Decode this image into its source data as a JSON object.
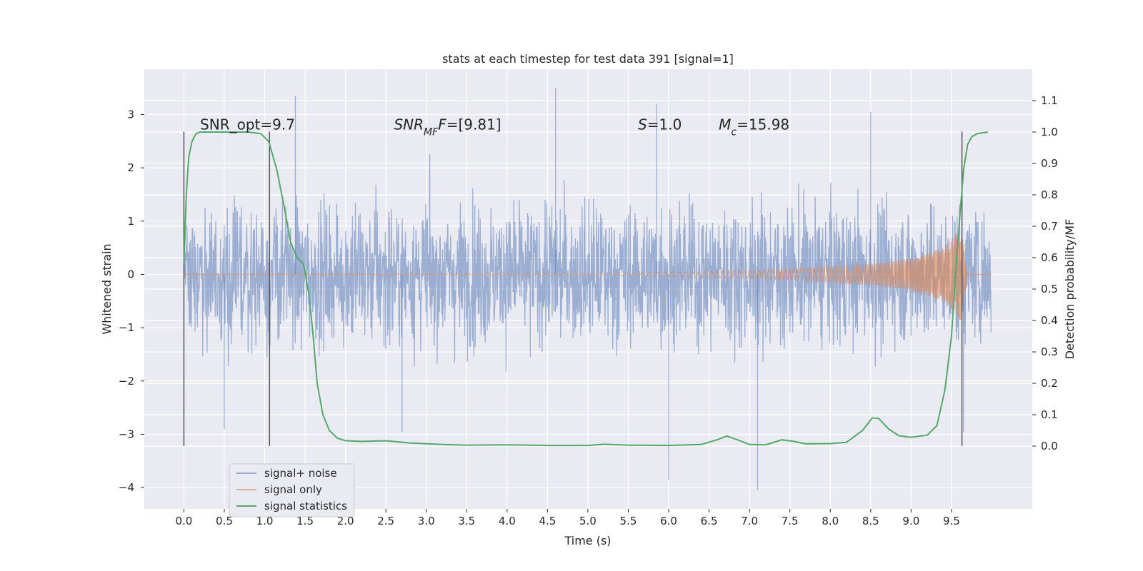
{
  "chart_data": {
    "type": "line",
    "title": "stats at each timestep for test data 391 [signal=1]",
    "xlabel": "Time (s)",
    "ylabel": "Whitened strain",
    "y2label": "Detection probability/MF",
    "xlim": [
      -0.49,
      10.5
    ],
    "ylim": [
      -4.4,
      3.85
    ],
    "y2lim": [
      -0.2,
      1.2
    ],
    "xticks": [
      0.0,
      0.5,
      1.0,
      1.5,
      2.0,
      2.5,
      3.0,
      3.5,
      4.0,
      4.5,
      5.0,
      5.5,
      6.0,
      6.5,
      7.0,
      7.5,
      8.0,
      8.5,
      9.0,
      9.5
    ],
    "xtick_labels": [
      "0.0",
      "0.5",
      "1.0",
      "1.5",
      "2.0",
      "2.5",
      "3.0",
      "3.5",
      "4.0",
      "4.5",
      "5.0",
      "5.5",
      "6.0",
      "6.5",
      "7.0",
      "7.5",
      "8.0",
      "8.5",
      "9.0",
      "9.5"
    ],
    "yticks": [
      3,
      2,
      1,
      0,
      -1,
      -2,
      -3,
      -4
    ],
    "ytick_labels": [
      "3",
      "2",
      "1",
      "0",
      "−1",
      "−2",
      "−3",
      "−4"
    ],
    "y2ticks": [
      1.1,
      1.0,
      0.9,
      0.8,
      0.7,
      0.6,
      0.5,
      0.4,
      0.3,
      0.2,
      0.1,
      0.0
    ],
    "y2tick_labels": [
      "1.1",
      "1.0",
      "0.9",
      "0.8",
      "0.7",
      "0.6",
      "0.5",
      "0.4",
      "0.3",
      "0.2",
      "0.1",
      "0.0"
    ],
    "grid": true,
    "legend_position": "lower-left",
    "series": [
      {
        "name": "signal+ noise",
        "color": "#4c72b0",
        "opacity": 0.5,
        "axis": "left",
        "x_range": [
          0.0,
          9.99
        ],
        "approx_envelope": [
          -1.5,
          1.5
        ],
        "approx_extremes": [
          {
            "x": 1.38,
            "y": 3.35
          },
          {
            "x": 4.6,
            "y": 3.5
          },
          {
            "x": 5.85,
            "y": 3.2
          },
          {
            "x": 6.0,
            "y": -3.85
          },
          {
            "x": 7.1,
            "y": -4.05
          },
          {
            "x": 0.5,
            "y": -2.9
          },
          {
            "x": 2.7,
            "y": -2.95
          },
          {
            "x": 8.5,
            "y": 3.05
          },
          {
            "x": 9.65,
            "y": -2.95
          }
        ]
      },
      {
        "name": "signal only",
        "color": "#dd8452",
        "axis": "left",
        "note": "chirp",
        "amplitude_points": [
          [
            0.0,
            0.0
          ],
          [
            5.5,
            0.02
          ],
          [
            6.5,
            0.06
          ],
          [
            7.5,
            0.1
          ],
          [
            8.5,
            0.2
          ],
          [
            9.0,
            0.3
          ],
          [
            9.4,
            0.5
          ],
          [
            9.62,
            0.9
          ],
          [
            9.7,
            0.0
          ],
          [
            10.0,
            0.0
          ]
        ]
      },
      {
        "name": "signal statistics",
        "color": "#55a868",
        "axis": "right",
        "points": [
          [
            0.0,
            0.58
          ],
          [
            0.03,
            0.8
          ],
          [
            0.06,
            0.92
          ],
          [
            0.1,
            0.97
          ],
          [
            0.15,
            0.995
          ],
          [
            0.2,
            1.0
          ],
          [
            0.5,
            1.0
          ],
          [
            0.8,
            1.0
          ],
          [
            0.95,
            0.995
          ],
          [
            1.05,
            0.97
          ],
          [
            1.15,
            0.88
          ],
          [
            1.25,
            0.75
          ],
          [
            1.32,
            0.65
          ],
          [
            1.4,
            0.6
          ],
          [
            1.48,
            0.58
          ],
          [
            1.55,
            0.48
          ],
          [
            1.6,
            0.35
          ],
          [
            1.65,
            0.2
          ],
          [
            1.72,
            0.1
          ],
          [
            1.8,
            0.05
          ],
          [
            1.9,
            0.025
          ],
          [
            2.0,
            0.017
          ],
          [
            2.2,
            0.015
          ],
          [
            2.5,
            0.017
          ],
          [
            2.8,
            0.01
          ],
          [
            3.2,
            0.005
          ],
          [
            3.5,
            0.003
          ],
          [
            4.0,
            0.004
          ],
          [
            4.5,
            0.002
          ],
          [
            5.0,
            0.002
          ],
          [
            5.2,
            0.006
          ],
          [
            5.5,
            0.003
          ],
          [
            6.0,
            0.002
          ],
          [
            6.4,
            0.005
          ],
          [
            6.6,
            0.02
          ],
          [
            6.72,
            0.032
          ],
          [
            6.85,
            0.02
          ],
          [
            7.0,
            0.005
          ],
          [
            7.2,
            0.004
          ],
          [
            7.4,
            0.02
          ],
          [
            7.55,
            0.015
          ],
          [
            7.7,
            0.007
          ],
          [
            8.0,
            0.008
          ],
          [
            8.2,
            0.012
          ],
          [
            8.4,
            0.05
          ],
          [
            8.52,
            0.09
          ],
          [
            8.6,
            0.088
          ],
          [
            8.72,
            0.055
          ],
          [
            8.85,
            0.033
          ],
          [
            9.0,
            0.028
          ],
          [
            9.2,
            0.035
          ],
          [
            9.32,
            0.065
          ],
          [
            9.42,
            0.18
          ],
          [
            9.5,
            0.35
          ],
          [
            9.55,
            0.55
          ],
          [
            9.6,
            0.72
          ],
          [
            9.65,
            0.88
          ],
          [
            9.7,
            0.96
          ],
          [
            9.75,
            0.985
          ],
          [
            9.82,
            0.995
          ],
          [
            9.95,
            1.0
          ]
        ]
      }
    ],
    "vlines": [
      {
        "x": 0.0,
        "y_from": -3.22,
        "y_to": 2.68
      },
      {
        "x": 1.06,
        "y_from": -3.22,
        "y_to": 2.68
      },
      {
        "x": 9.63,
        "y_from": -3.22,
        "y_to": 2.68
      }
    ],
    "annotations": [
      {
        "text_parts": [
          {
            "t": "SNR_opt=9.7"
          }
        ],
        "x": 0.2,
        "y": 2.72
      },
      {
        "text_parts": [
          {
            "t": "SNR",
            "italic": true
          },
          {
            "t": "MF",
            "italic": true,
            "sub": true
          },
          {
            "t": "F",
            "italic": true
          },
          {
            "t": "=[9.81]"
          }
        ],
        "x": 2.6,
        "y": 2.72
      },
      {
        "text_parts": [
          {
            "t": "S",
            "italic": true
          },
          {
            "t": "=1.0"
          }
        ],
        "x": 5.62,
        "y": 2.72
      },
      {
        "text_parts": [
          {
            "t": "M",
            "italic": true
          },
          {
            "t": "c",
            "italic": true,
            "sub": true
          },
          {
            "t": "=15.98"
          }
        ],
        "x": 6.62,
        "y": 2.72
      }
    ]
  }
}
